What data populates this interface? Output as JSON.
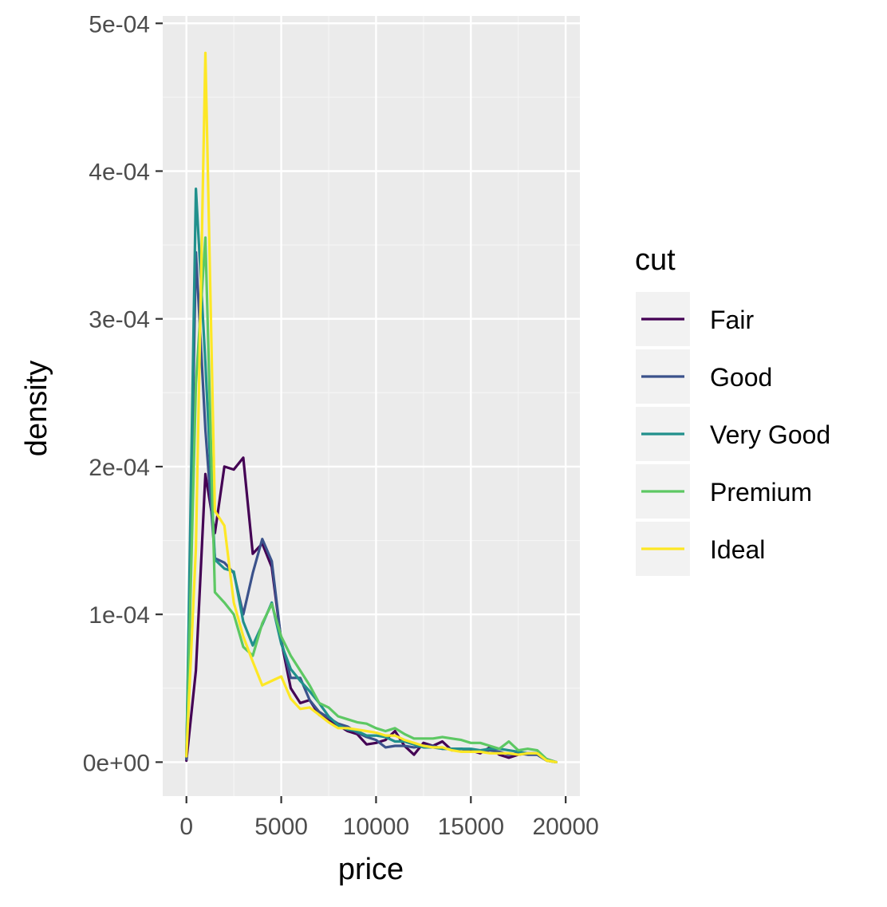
{
  "chart_data": {
    "type": "line",
    "title": "",
    "xlabel": "price",
    "ylabel": "density",
    "xlim": [
      -1250,
      20750
    ],
    "ylim": [
      -2.3e-05,
      0.000505
    ],
    "x_ticks": [
      0,
      5000,
      10000,
      15000,
      20000
    ],
    "x_tick_labels": [
      "0",
      "5000",
      "10000",
      "15000",
      "20000"
    ],
    "y_ticks": [
      0,
      0.0001,
      0.0002,
      0.0003,
      0.0004,
      0.0005
    ],
    "y_tick_labels": [
      "0e+00",
      "1e-04",
      "2e-04",
      "3e-04",
      "4e-04",
      "5e-04"
    ],
    "grid": true,
    "legend": {
      "title": "cut",
      "position": "right"
    },
    "series": [
      {
        "name": "Fair",
        "color": "#440154",
        "x": [
          0,
          500,
          1000,
          1500,
          2000,
          2500,
          3000,
          3500,
          4000,
          4500,
          5000,
          5500,
          6000,
          6500,
          7000,
          7500,
          8000,
          8500,
          9000,
          9500,
          10000,
          10500,
          11000,
          11500,
          12000,
          12500,
          13000,
          13500,
          14000,
          14500,
          15000,
          15500,
          16000,
          16500,
          17000,
          17500,
          18000,
          18500,
          19000,
          19500
        ],
        "y": [
          1e-06,
          6.2e-05,
          0.000195,
          0.000155,
          0.0002,
          0.000198,
          0.000206,
          0.000141,
          0.000148,
          0.000132,
          8.2e-05,
          5e-05,
          4e-05,
          4.2e-05,
          3.2e-05,
          2.8e-05,
          2.5e-05,
          2.1e-05,
          1.9e-05,
          1.2e-05,
          1.3e-05,
          1.5e-05,
          2.1e-05,
          1.1e-05,
          5e-06,
          1.3e-05,
          1.1e-05,
          1.4e-05,
          8e-06,
          9e-06,
          8e-06,
          6e-06,
          1e-05,
          5e-06,
          3e-06,
          5e-06,
          6e-06,
          6e-06,
          2e-06,
          0
        ]
      },
      {
        "name": "Good",
        "color": "#3b528b",
        "x": [
          0,
          500,
          1000,
          1500,
          2000,
          2500,
          3000,
          3500,
          4000,
          4500,
          5000,
          5500,
          6000,
          6500,
          7000,
          7500,
          8000,
          8500,
          9000,
          9500,
          10000,
          10500,
          11000,
          11500,
          12000,
          12500,
          13000,
          13500,
          14000,
          14500,
          15000,
          15500,
          16000,
          16500,
          17000,
          17500,
          18000,
          18500,
          19000,
          19500
        ],
        "y": [
          2e-06,
          0.000345,
          0.000225,
          0.000138,
          0.000135,
          0.000128,
          0.0001,
          0.000128,
          0.000151,
          0.000136,
          8.2e-05,
          5.7e-05,
          5.7e-05,
          4.2e-05,
          3.4e-05,
          3e-05,
          2.6e-05,
          2.4e-05,
          2e-05,
          1.7e-05,
          1.5e-05,
          1e-05,
          1.1e-05,
          1.1e-05,
          1e-05,
          1.1e-05,
          1.1e-05,
          9e-06,
          9e-06,
          9e-06,
          7e-06,
          7e-06,
          8e-06,
          7e-06,
          5e-06,
          6e-06,
          5e-06,
          5e-06,
          1e-06,
          0
        ]
      },
      {
        "name": "Very Good",
        "color": "#21908c",
        "x": [
          0,
          500,
          1000,
          1500,
          2000,
          2500,
          3000,
          3500,
          4000,
          4500,
          5000,
          5500,
          6000,
          6500,
          7000,
          7500,
          8000,
          8500,
          9000,
          9500,
          10000,
          10500,
          11000,
          11500,
          12000,
          12500,
          13000,
          13500,
          14000,
          14500,
          15000,
          15500,
          16000,
          16500,
          17000,
          17500,
          18000,
          18500,
          19000,
          19500
        ],
        "y": [
          4e-06,
          0.000388,
          0.00027,
          0.000137,
          0.000131,
          0.000129,
          9.5e-05,
          7.9e-05,
          9.3e-05,
          0.000108,
          8e-05,
          6.3e-05,
          5.5e-05,
          4.8e-05,
          4e-05,
          3.1e-05,
          2.5e-05,
          2.2e-05,
          2.1e-05,
          1.8e-05,
          1.8e-05,
          1.7e-05,
          1.4e-05,
          1.4e-05,
          1.2e-05,
          1e-05,
          1e-05,
          9e-06,
          9e-06,
          9e-06,
          9e-06,
          8e-06,
          9e-06,
          9e-06,
          8e-06,
          7e-06,
          6e-06,
          6e-06,
          1e-06,
          0
        ]
      },
      {
        "name": "Premium",
        "color": "#5dc863",
        "x": [
          0,
          500,
          1000,
          1500,
          2000,
          2500,
          3000,
          3500,
          4000,
          4500,
          5000,
          5500,
          6000,
          6500,
          7000,
          7500,
          8000,
          8500,
          9000,
          9500,
          10000,
          10500,
          11000,
          11500,
          12000,
          12500,
          13000,
          13500,
          14000,
          14500,
          15000,
          15500,
          16000,
          16500,
          17000,
          17500,
          18000,
          18500,
          19000,
          19500
        ],
        "y": [
          4e-06,
          0.000256,
          0.000355,
          0.000115,
          0.000108,
          0.0001,
          7.8e-05,
          7.2e-05,
          9.4e-05,
          0.000107,
          8.5e-05,
          7.2e-05,
          6.2e-05,
          5.2e-05,
          4e-05,
          3.7e-05,
          3.1e-05,
          2.9e-05,
          2.7e-05,
          2.6e-05,
          2.3e-05,
          2.1e-05,
          2.3e-05,
          1.9e-05,
          1.6e-05,
          1.6e-05,
          1.6e-05,
          1.7e-05,
          1.6e-05,
          1.5e-05,
          1.3e-05,
          1.3e-05,
          1.1e-05,
          9e-06,
          1.4e-05,
          8e-06,
          9e-06,
          8e-06,
          2e-06,
          0
        ]
      },
      {
        "name": "Ideal",
        "color": "#fde725",
        "x": [
          0,
          500,
          1000,
          1500,
          2000,
          2500,
          3000,
          3500,
          4000,
          4500,
          5000,
          5500,
          6000,
          6500,
          7000,
          7500,
          8000,
          8500,
          9000,
          9500,
          10000,
          10500,
          11000,
          11500,
          12000,
          12500,
          13000,
          13500,
          14000,
          14500,
          15000,
          15500,
          16000,
          16500,
          17000,
          17500,
          18000,
          18500,
          19000,
          19500
        ],
        "y": [
          4e-06,
          0.000145,
          0.00048,
          0.00017,
          0.00016,
          0.000108,
          8.5e-05,
          6.8e-05,
          5.2e-05,
          5.5e-05,
          5.8e-05,
          4.3e-05,
          3.6e-05,
          3.7e-05,
          3.2e-05,
          2.7e-05,
          2.3e-05,
          2.3e-05,
          2.2e-05,
          2.1e-05,
          2e-05,
          1.8e-05,
          1.8e-05,
          1.5e-05,
          1.3e-05,
          1.1e-05,
          1e-05,
          1e-05,
          8e-06,
          7e-06,
          7e-06,
          7e-06,
          6e-06,
          6e-06,
          6e-06,
          5e-06,
          6e-06,
          6e-06,
          1e-06,
          0
        ]
      }
    ]
  }
}
